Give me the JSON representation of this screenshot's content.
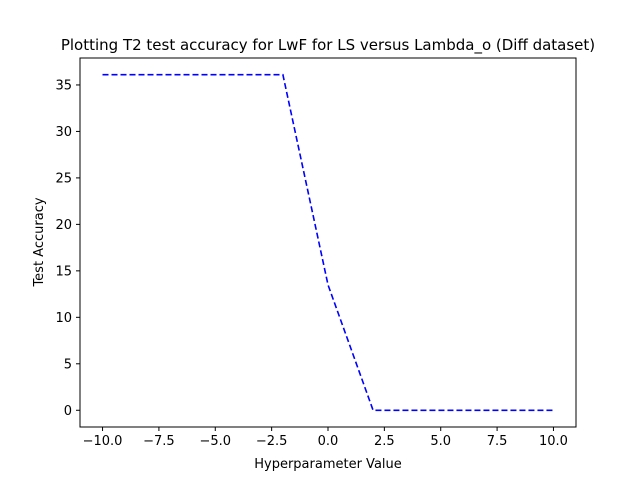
{
  "chart_data": {
    "type": "line",
    "title": "Plotting T2 test accuracy for LwF for LS versus Lambda_o (Diff dataset)",
    "xlabel": "Hyperparameter Value",
    "ylabel": "Test Accuracy",
    "xlim": [
      -11,
      11
    ],
    "ylim": [
      -1.8,
      37.9
    ],
    "xticks": [
      -10.0,
      -7.5,
      -5.0,
      -2.5,
      0.0,
      2.5,
      5.0,
      7.5,
      10.0
    ],
    "xtick_labels": [
      "−10.0",
      "−7.5",
      "−5.0",
      "−2.5",
      "0.0",
      "2.5",
      "5.0",
      "7.5",
      "10.0"
    ],
    "yticks": [
      0,
      5,
      10,
      15,
      20,
      25,
      30,
      35
    ],
    "ytick_labels": [
      "0",
      "5",
      "10",
      "15",
      "20",
      "25",
      "30",
      "35"
    ],
    "grid": false,
    "legend": false,
    "series": [
      {
        "color": "#0000ff",
        "line_style": "dashed",
        "x": [
          -10,
          -2,
          0,
          2,
          10
        ],
        "y": [
          36.1,
          36.1,
          13.5,
          0.0,
          0.0
        ]
      }
    ]
  }
}
